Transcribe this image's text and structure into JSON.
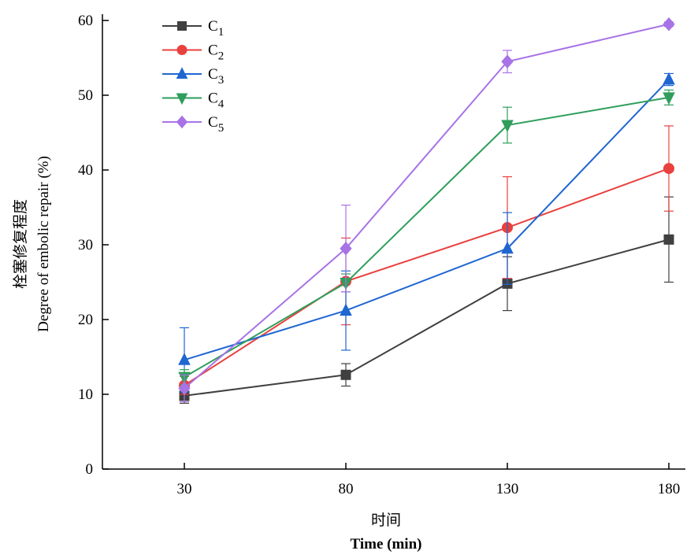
{
  "chart_data": {
    "type": "line",
    "xlabel_cn": "时间",
    "xlabel": "Time (min)",
    "ylabel_cn": "栓塞修复程度",
    "ylabel": "Degree of embolic repair (%)",
    "x": [
      30,
      80,
      130,
      180
    ],
    "xticks": [
      "30",
      "80",
      "130",
      "180"
    ],
    "ylim": [
      0,
      60
    ],
    "yticks": [
      "0",
      "10",
      "20",
      "30",
      "40",
      "50",
      "60"
    ],
    "legend_position": "top-left",
    "series": [
      {
        "name": "C",
        "sub": "1",
        "color": "#404040",
        "marker": "square",
        "values": [
          9.8,
          12.6,
          24.8,
          30.7
        ],
        "errors": [
          1.0,
          1.5,
          3.6,
          5.7
        ]
      },
      {
        "name": "C",
        "sub": "2",
        "color": "#e8413f",
        "marker": "circle",
        "values": [
          11.2,
          25.1,
          32.3,
          40.2
        ],
        "errors": [
          1.2,
          5.8,
          6.8,
          5.7
        ]
      },
      {
        "name": "C",
        "sub": "3",
        "color": "#1f66d1",
        "marker": "triangle-up",
        "values": [
          14.6,
          21.2,
          29.5,
          52.1
        ],
        "errors": [
          4.3,
          5.3,
          4.8,
          0.8
        ]
      },
      {
        "name": "C",
        "sub": "4",
        "color": "#2e9e5a",
        "marker": "triangle-down",
        "values": [
          12.3,
          24.9,
          46.0,
          49.7
        ],
        "errors": [
          1.0,
          1.2,
          2.4,
          1.0
        ]
      },
      {
        "name": "C",
        "sub": "5",
        "color": "#a873e6",
        "marker": "diamond",
        "values": [
          10.8,
          29.5,
          54.5,
          59.5
        ],
        "errors": [
          1.8,
          5.8,
          1.5,
          0.3
        ]
      }
    ]
  }
}
